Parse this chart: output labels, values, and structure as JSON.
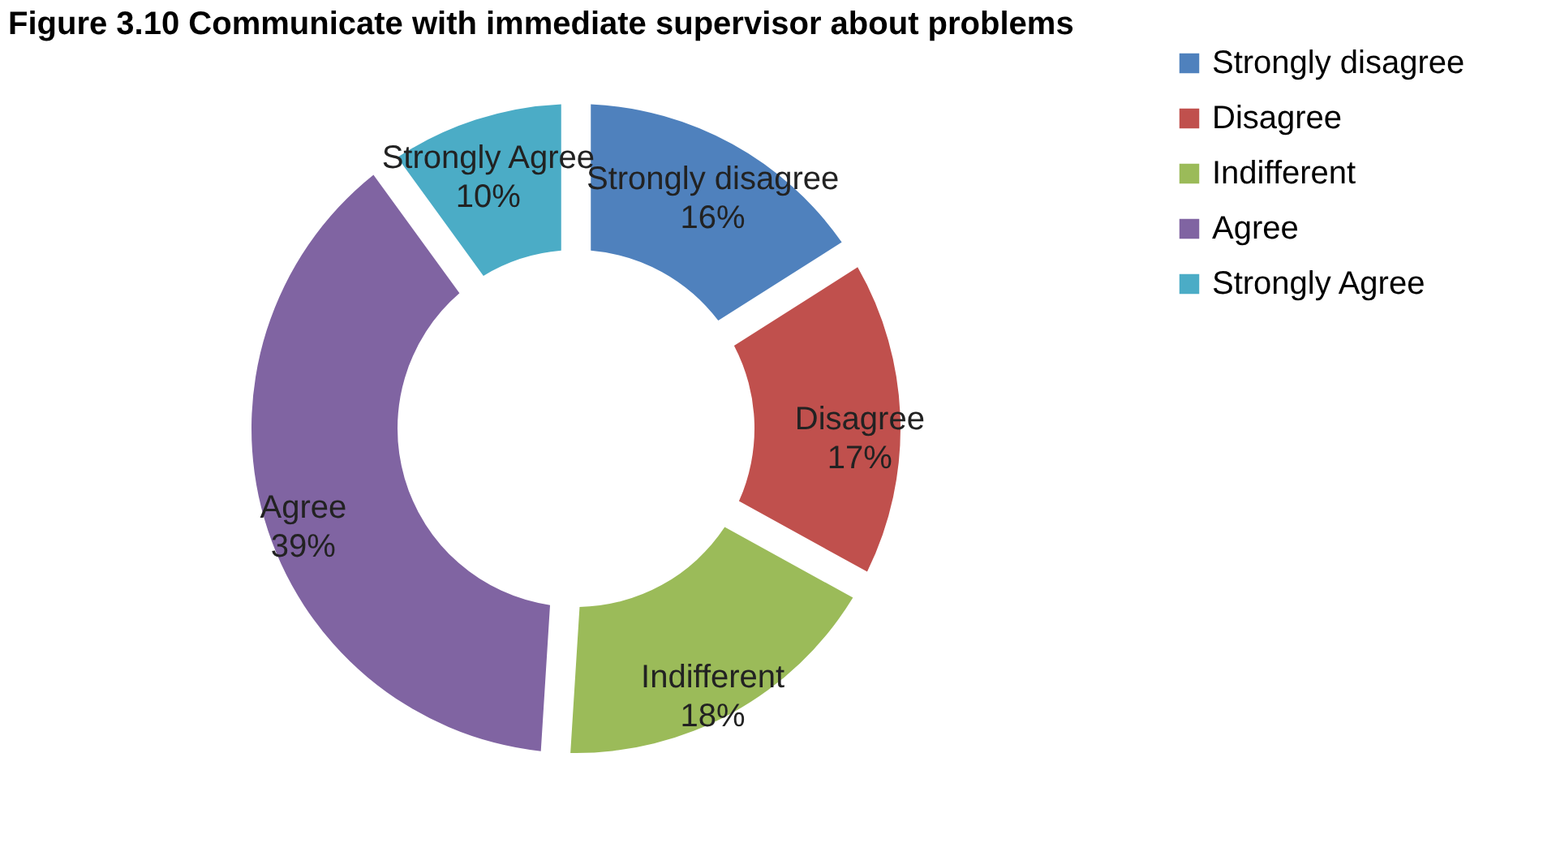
{
  "chart_data": {
    "type": "donut",
    "title": "Figure 3.10 Communicate with immediate supervisor about problems",
    "categories": [
      "Strongly disagree",
      "Disagree",
      "Indifferent",
      "Agree",
      "Strongly Agree"
    ],
    "values": [
      16,
      17,
      18,
      39,
      10
    ],
    "value_labels": [
      "16%",
      "17%",
      "18%",
      "39%",
      "10%"
    ],
    "colors": [
      "#4f81bd",
      "#c0504d",
      "#9bbb59",
      "#8064a2",
      "#4bacc6"
    ],
    "legend": "right"
  }
}
